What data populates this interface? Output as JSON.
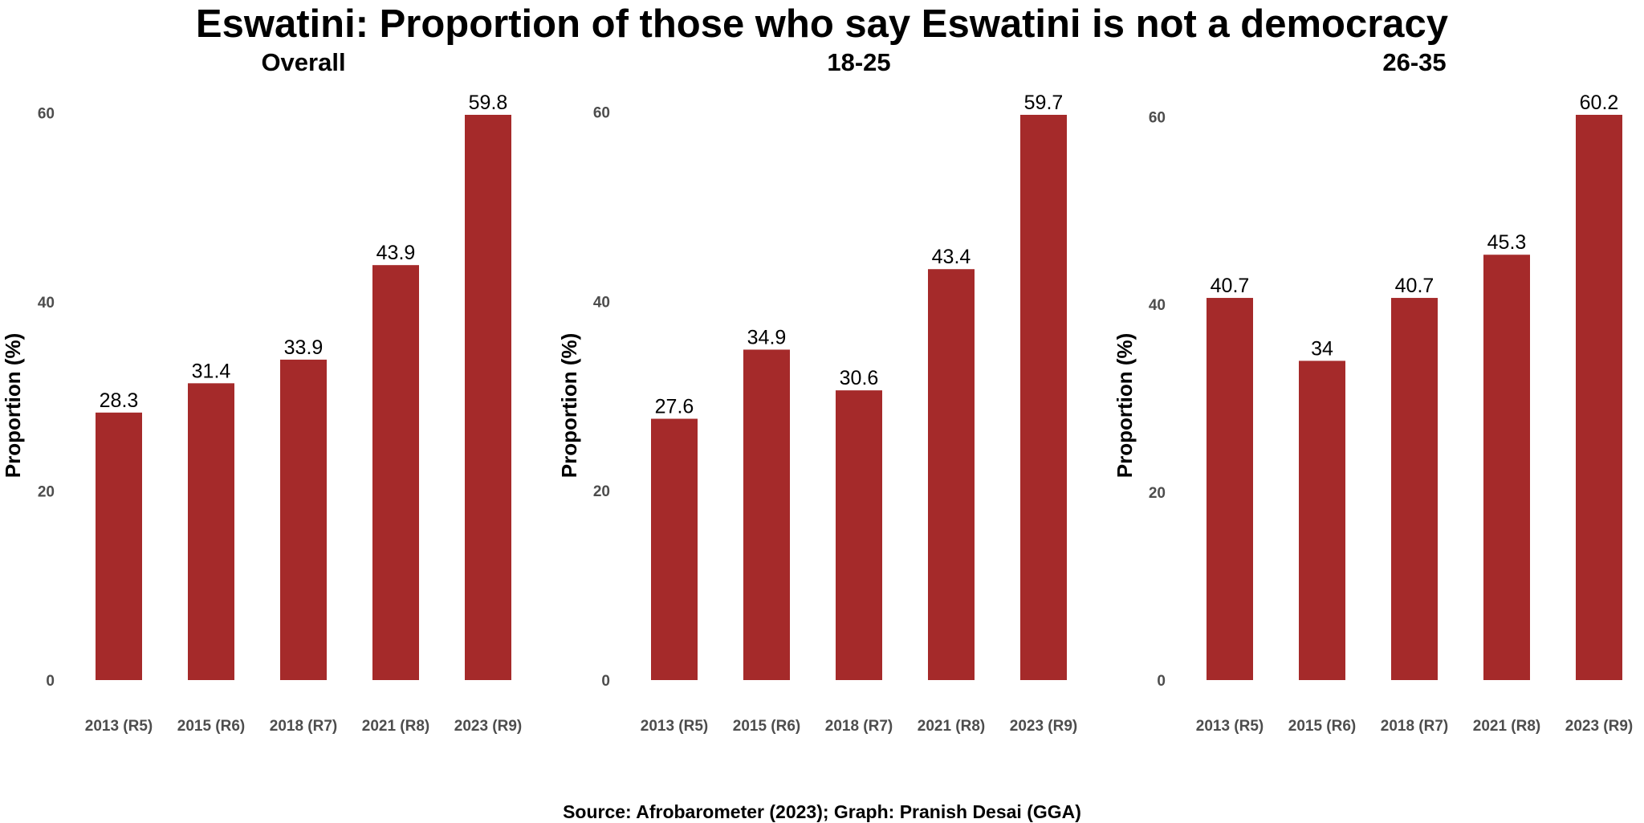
{
  "title": "Eswatini: Proportion of those who say Eswatini is not a democracy",
  "source": "Source: Afrobarometer (2023); Graph: Pranish Desai (GGA)",
  "colors": {
    "bar": "#a52a2a",
    "tick": "#4d4d4d",
    "text": "#000000"
  },
  "chart_data": [
    {
      "type": "bar",
      "title": "Overall",
      "ylabel": "Proportion (%)",
      "xlabel": "",
      "categories": [
        "2013 (R5)",
        "2015 (R6)",
        "2018 (R7)",
        "2021 (R8)",
        "2023 (R9)"
      ],
      "values": [
        28.3,
        31.4,
        33.9,
        43.9,
        59.8
      ],
      "labels": [
        "28.3",
        "31.4",
        "33.9",
        "43.9",
        "59.8"
      ],
      "yticks": [
        0,
        20,
        40,
        60
      ],
      "ylim": [
        0,
        59.8
      ],
      "grid": false
    },
    {
      "type": "bar",
      "title": "18-25",
      "ylabel": "Proportion (%)",
      "xlabel": "",
      "categories": [
        "2013 (R5)",
        "2015 (R6)",
        "2018 (R7)",
        "2021 (R8)",
        "2023 (R9)"
      ],
      "values": [
        27.6,
        34.9,
        30.6,
        43.4,
        59.7
      ],
      "labels": [
        "27.6",
        "34.9",
        "30.6",
        "43.4",
        "59.7"
      ],
      "yticks": [
        0,
        20,
        40,
        60
      ],
      "ylim": [
        0,
        59.7
      ],
      "grid": false
    },
    {
      "type": "bar",
      "title": "26-35",
      "ylabel": "Proportion (%)",
      "xlabel": "",
      "categories": [
        "2013 (R5)",
        "2015 (R6)",
        "2018 (R7)",
        "2021 (R8)",
        "2023 (R9)"
      ],
      "values": [
        40.7,
        34,
        40.7,
        45.3,
        60.2
      ],
      "labels": [
        "40.7",
        "34",
        "40.7",
        "45.3",
        "60.2"
      ],
      "yticks": [
        0,
        20,
        40,
        60
      ],
      "ylim": [
        0,
        60.2
      ],
      "grid": false
    }
  ]
}
